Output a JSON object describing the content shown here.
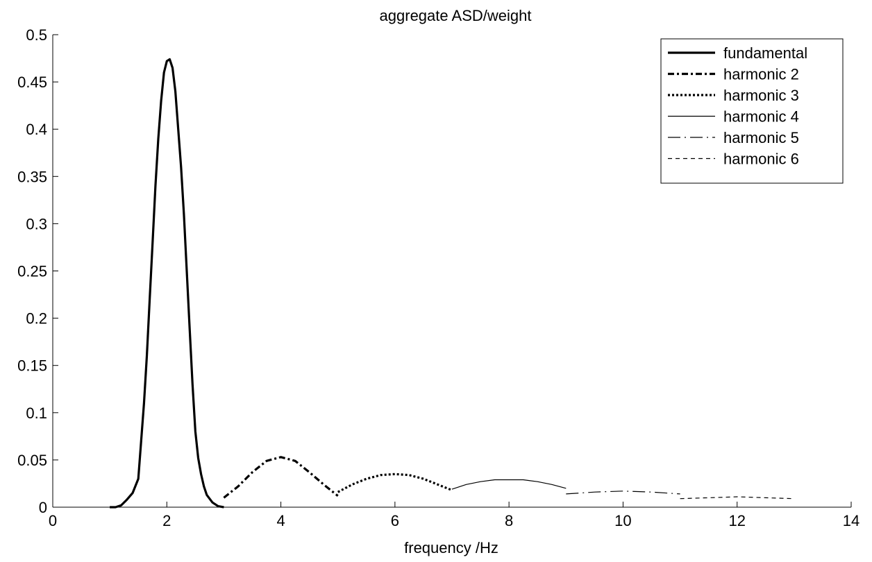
{
  "chart_data": {
    "type": "line",
    "title": "aggregate ASD/weight",
    "xlabel": "frequency /Hz",
    "ylabel": "",
    "xlim": [
      0,
      14
    ],
    "ylim": [
      0,
      0.5
    ],
    "xticks": [
      0,
      2,
      4,
      6,
      8,
      10,
      12,
      14
    ],
    "yticks": [
      0,
      0.05,
      0.1,
      0.15,
      0.2,
      0.25,
      0.3,
      0.35,
      0.4,
      0.45,
      0.5
    ],
    "grid": false,
    "legend_position": "top-right",
    "series": [
      {
        "name": "fundamental",
        "style": "solid-thick",
        "x": [
          1.0,
          1.1,
          1.2,
          1.3,
          1.4,
          1.5,
          1.55,
          1.6,
          1.65,
          1.7,
          1.75,
          1.8,
          1.85,
          1.9,
          1.95,
          2.0,
          2.05,
          2.1,
          2.15,
          2.2,
          2.25,
          2.3,
          2.35,
          2.4,
          2.45,
          2.5,
          2.55,
          2.6,
          2.65,
          2.7,
          2.8,
          2.9,
          3.0
        ],
        "y": [
          0.0,
          0.0,
          0.002,
          0.008,
          0.015,
          0.03,
          0.07,
          0.11,
          0.16,
          0.22,
          0.28,
          0.34,
          0.39,
          0.43,
          0.46,
          0.472,
          0.474,
          0.465,
          0.44,
          0.4,
          0.36,
          0.31,
          0.25,
          0.19,
          0.13,
          0.08,
          0.052,
          0.035,
          0.022,
          0.013,
          0.005,
          0.001,
          0.0
        ]
      },
      {
        "name": "harmonic 2",
        "style": "dash-dot",
        "x": [
          3.0,
          3.25,
          3.5,
          3.75,
          4.0,
          4.25,
          4.5,
          4.75,
          5.0
        ],
        "y": [
          0.01,
          0.022,
          0.037,
          0.049,
          0.053,
          0.049,
          0.037,
          0.024,
          0.012
        ]
      },
      {
        "name": "harmonic 3",
        "style": "dotted",
        "x": [
          5.0,
          5.25,
          5.5,
          5.75,
          6.0,
          6.25,
          6.5,
          6.75,
          7.0
        ],
        "y": [
          0.016,
          0.024,
          0.03,
          0.034,
          0.035,
          0.034,
          0.03,
          0.024,
          0.018
        ]
      },
      {
        "name": "harmonic 4",
        "style": "solid-thin",
        "x": [
          7.0,
          7.25,
          7.5,
          7.75,
          8.0,
          8.25,
          8.5,
          8.75,
          9.0
        ],
        "y": [
          0.019,
          0.024,
          0.027,
          0.029,
          0.029,
          0.029,
          0.027,
          0.024,
          0.02
        ]
      },
      {
        "name": "harmonic 5",
        "style": "long-dash-dot",
        "x": [
          9.0,
          9.5,
          10.0,
          10.5,
          11.0
        ],
        "y": [
          0.014,
          0.016,
          0.017,
          0.016,
          0.014
        ]
      },
      {
        "name": "harmonic 6",
        "style": "dashed",
        "x": [
          11.0,
          11.5,
          12.0,
          12.5,
          13.0
        ],
        "y": [
          0.009,
          0.01,
          0.011,
          0.01,
          0.009
        ]
      }
    ]
  }
}
